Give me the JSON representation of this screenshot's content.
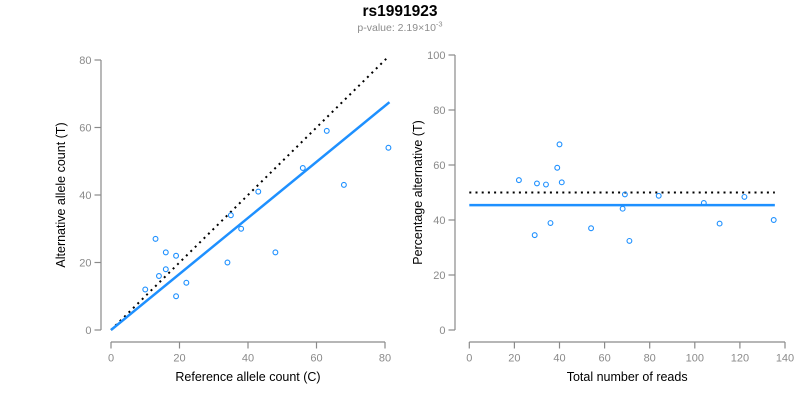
{
  "header": {
    "title": "rs1991923",
    "subtitle_base": "p-value: 2.19×10",
    "subtitle_exponent": "-3"
  },
  "colors": {
    "accent": "#1E90FF",
    "identity": "#000000",
    "axis": "#8a8a8a",
    "tick_text": "#8a8a8a",
    "axis_title_text": "#000000",
    "subtitle_text": "#8c8c8c"
  },
  "chart_data": [
    {
      "type": "scatter",
      "panel": "left",
      "title": "",
      "xlabel": "Reference allele count (C)",
      "ylabel": "Alternative allele count (T)",
      "xlim": [
        0,
        80
      ],
      "ylim": [
        0,
        80
      ],
      "xticks": [
        0,
        20,
        40,
        60,
        80
      ],
      "yticks": [
        0,
        20,
        40,
        60,
        80
      ],
      "grid": false,
      "legend": "none",
      "points": [
        [
          10,
          12
        ],
        [
          13,
          27
        ],
        [
          14,
          16
        ],
        [
          16,
          18
        ],
        [
          16,
          23
        ],
        [
          19,
          10
        ],
        [
          19,
          22
        ],
        [
          22,
          14
        ],
        [
          34,
          20
        ],
        [
          35,
          34
        ],
        [
          38,
          30
        ],
        [
          43,
          41
        ],
        [
          48,
          23
        ],
        [
          56,
          48
        ],
        [
          63,
          59
        ],
        [
          68,
          43
        ],
        [
          81,
          54
        ]
      ],
      "lines": [
        {
          "name": "identity-line",
          "style": "dotted",
          "color": "identity",
          "x1": 0,
          "y1": 0,
          "x2": 81,
          "y2": 81
        },
        {
          "name": "fit-line",
          "style": "solid",
          "color": "accent",
          "x1": 0,
          "y1": 0,
          "x2": 81.3,
          "y2": 67.5
        }
      ]
    },
    {
      "type": "scatter",
      "panel": "right",
      "title": "",
      "xlabel": "Total number of reads",
      "ylabel": "Percentage alternative (T)",
      "xlim": [
        0,
        140
      ],
      "ylim": [
        0,
        100
      ],
      "xticks": [
        0,
        20,
        40,
        60,
        80,
        100,
        120,
        140
      ],
      "yticks": [
        0,
        20,
        40,
        60,
        80,
        100
      ],
      "grid": false,
      "legend": "none",
      "points": [
        [
          22,
          54.5
        ],
        [
          40,
          67.5
        ],
        [
          30,
          53.3
        ],
        [
          34,
          52.9
        ],
        [
          39,
          59.0
        ],
        [
          29,
          34.5
        ],
        [
          41,
          53.7
        ],
        [
          36,
          38.9
        ],
        [
          54,
          37.0
        ],
        [
          69,
          49.3
        ],
        [
          68,
          44.1
        ],
        [
          84,
          48.8
        ],
        [
          71,
          32.4
        ],
        [
          104,
          46.2
        ],
        [
          122,
          48.4
        ],
        [
          111,
          38.7
        ],
        [
          135,
          40.0
        ]
      ],
      "lines": [
        {
          "name": "fifty-percent-line",
          "style": "dotted",
          "color": "identity",
          "x1": 0,
          "y1": 50,
          "x2": 135.5,
          "y2": 50
        },
        {
          "name": "mean-percentage-line",
          "style": "solid",
          "color": "accent",
          "x1": 0,
          "y1": 45.4,
          "x2": 135.5,
          "y2": 45.4
        }
      ]
    }
  ]
}
